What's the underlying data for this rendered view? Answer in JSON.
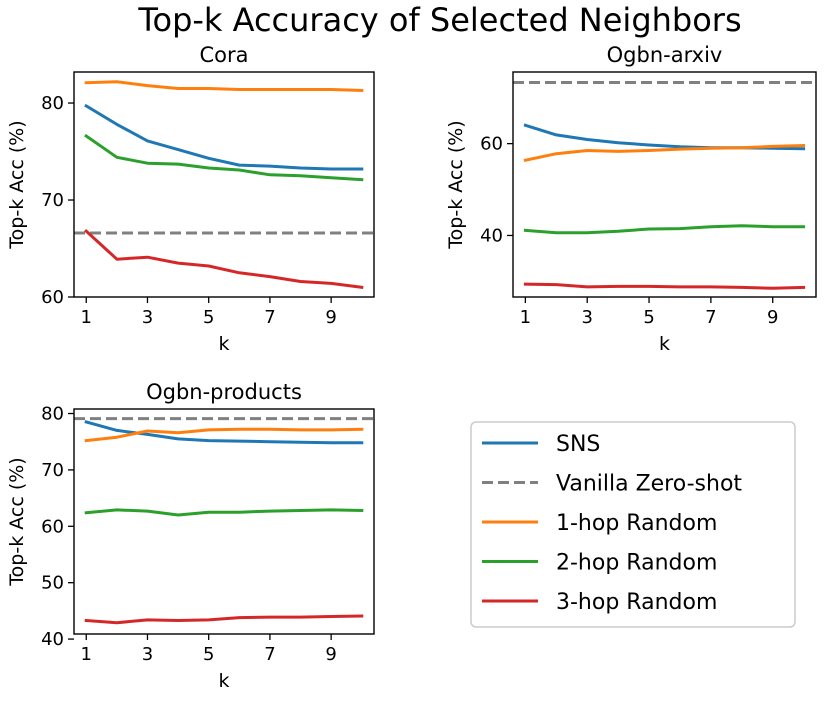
{
  "title": "Top-k Accuracy of Selected Neighbors",
  "legend": {
    "items": [
      {
        "label": "SNS",
        "color": "#1f77b4",
        "dash": false
      },
      {
        "label": "Vanilla Zero-shot",
        "color": "#808080",
        "dash": true
      },
      {
        "label": "1-hop Random",
        "color": "#ff7f0e",
        "dash": false
      },
      {
        "label": "2-hop Random",
        "color": "#2ca02c",
        "dash": false
      },
      {
        "label": "3-hop Random",
        "color": "#d62728",
        "dash": false
      }
    ]
  },
  "chart_data": [
    {
      "type": "line",
      "title": "Cora",
      "xlabel": "k",
      "ylabel": "Top-k Acc (%)",
      "x": [
        1,
        2,
        3,
        4,
        5,
        6,
        7,
        8,
        9,
        10
      ],
      "xticks": [
        1,
        3,
        5,
        7,
        9
      ],
      "yticks": [
        60,
        70,
        80
      ],
      "xlim": [
        0.6,
        10.4
      ],
      "ylim": [
        60,
        83.2
      ],
      "hline": {
        "name": "Vanilla Zero-shot",
        "value": 66.6,
        "color": "#808080"
      },
      "series": [
        {
          "name": "SNS",
          "color": "#1f77b4",
          "values": [
            79.7,
            77.8,
            76.1,
            75.2,
            74.3,
            73.6,
            73.5,
            73.3,
            73.2,
            73.2
          ]
        },
        {
          "name": "1-hop Random",
          "color": "#ff7f0e",
          "values": [
            82.1,
            82.2,
            81.8,
            81.5,
            81.5,
            81.4,
            81.4,
            81.4,
            81.4,
            81.3
          ]
        },
        {
          "name": "2-hop Random",
          "color": "#2ca02c",
          "values": [
            76.6,
            74.4,
            73.8,
            73.7,
            73.3,
            73.1,
            72.6,
            72.5,
            72.3,
            72.1
          ]
        },
        {
          "name": "3-hop Random",
          "color": "#d62728",
          "values": [
            66.8,
            63.9,
            64.1,
            63.5,
            63.2,
            62.5,
            62.1,
            61.6,
            61.4,
            61.0
          ]
        }
      ]
    },
    {
      "type": "line",
      "title": "Ogbn-arxiv",
      "xlabel": "k",
      "ylabel": "Top-k Acc (%)",
      "x": [
        1,
        2,
        3,
        4,
        5,
        6,
        7,
        8,
        9,
        10
      ],
      "xticks": [
        1,
        3,
        5,
        7,
        9
      ],
      "yticks": [
        40,
        60
      ],
      "xlim": [
        0.6,
        10.4
      ],
      "ylim": [
        26.6,
        75.6
      ],
      "hline": {
        "name": "Vanilla Zero-shot",
        "value": 73.3,
        "color": "#808080"
      },
      "series": [
        {
          "name": "SNS",
          "color": "#1f77b4",
          "values": [
            64.0,
            61.9,
            60.9,
            60.2,
            59.7,
            59.3,
            59.1,
            59.1,
            59.0,
            58.9
          ]
        },
        {
          "name": "1-hop Random",
          "color": "#ff7f0e",
          "values": [
            56.4,
            57.8,
            58.5,
            58.3,
            58.5,
            58.8,
            59.0,
            59.1,
            59.4,
            59.6
          ]
        },
        {
          "name": "2-hop Random",
          "color": "#2ca02c",
          "values": [
            41.1,
            40.6,
            40.6,
            40.9,
            41.4,
            41.5,
            41.9,
            42.1,
            41.9,
            41.9
          ]
        },
        {
          "name": "3-hop Random",
          "color": "#d62728",
          "values": [
            29.4,
            29.3,
            28.8,
            28.9,
            28.9,
            28.8,
            28.8,
            28.7,
            28.5,
            28.7
          ]
        }
      ]
    },
    {
      "type": "line",
      "title": "Ogbn-products",
      "xlabel": "k",
      "ylabel": "Top-k Acc (%)",
      "x": [
        1,
        2,
        3,
        4,
        5,
        6,
        7,
        8,
        9,
        10
      ],
      "xticks": [
        1,
        3,
        5,
        7,
        9
      ],
      "yticks": [
        40,
        50,
        60,
        70,
        80
      ],
      "xlim": [
        0.6,
        10.4
      ],
      "ylim": [
        40.9,
        80.8
      ],
      "hline": {
        "name": "Vanilla Zero-shot",
        "value": 79.1,
        "color": "#808080"
      },
      "series": [
        {
          "name": "SNS",
          "color": "#1f77b4",
          "values": [
            78.5,
            77.0,
            76.3,
            75.5,
            75.2,
            75.1,
            75.0,
            74.9,
            74.8,
            74.8
          ]
        },
        {
          "name": "1-hop Random",
          "color": "#ff7f0e",
          "values": [
            75.2,
            75.8,
            76.9,
            76.6,
            77.1,
            77.2,
            77.2,
            77.1,
            77.1,
            77.2
          ]
        },
        {
          "name": "2-hop Random",
          "color": "#2ca02c",
          "values": [
            62.4,
            62.9,
            62.7,
            62.0,
            62.5,
            62.5,
            62.7,
            62.8,
            62.9,
            62.8
          ]
        },
        {
          "name": "3-hop Random",
          "color": "#d62728",
          "values": [
            43.3,
            42.9,
            43.4,
            43.3,
            43.4,
            43.8,
            43.9,
            43.9,
            44.0,
            44.1
          ]
        }
      ]
    }
  ]
}
